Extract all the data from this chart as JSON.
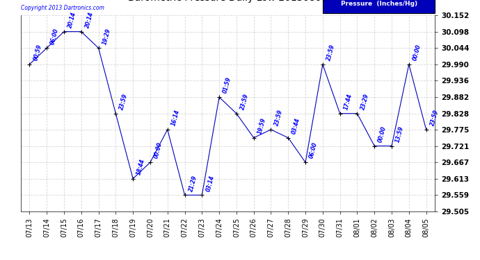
{
  "copyright_text": "Copyright 2013 Dartronics.com",
  "legend_label": "Pressure  (Inches/Hg)",
  "dates": [
    "07/13",
    "07/14",
    "07/15",
    "07/16",
    "07/17",
    "07/18",
    "07/19",
    "07/20",
    "07/21",
    "07/22",
    "07/23",
    "07/24",
    "07/25",
    "07/26",
    "07/27",
    "07/28",
    "07/29",
    "07/30",
    "07/31",
    "08/01",
    "08/02",
    "08/03",
    "08/04",
    "08/05"
  ],
  "pressures": [
    29.99,
    30.044,
    30.098,
    30.098,
    30.044,
    29.828,
    29.613,
    29.667,
    29.775,
    29.559,
    29.559,
    29.882,
    29.828,
    29.748,
    29.775,
    29.748,
    29.667,
    29.99,
    29.828,
    29.828,
    29.721,
    29.721,
    29.99,
    29.775
  ],
  "time_labels": [
    "00:59",
    "06:00",
    "20:14",
    "20:14",
    "19:29",
    "23:59",
    "18:44",
    "00:00",
    "16:14",
    "21:29",
    "03:14",
    "01:59",
    "23:59",
    "19:59",
    "23:59",
    "03:44",
    "06:00",
    "23:59",
    "17:44",
    "23:29",
    "00:00",
    "13:59",
    "00:00",
    "23:59"
  ],
  "ylim": [
    29.505,
    30.152
  ],
  "yticks": [
    29.505,
    29.559,
    29.613,
    29.667,
    29.721,
    29.775,
    29.828,
    29.882,
    29.936,
    29.99,
    30.044,
    30.098,
    30.152
  ],
  "line_color": "#0000bb",
  "marker_color": "#000000",
  "bg_color": "#ffffff",
  "grid_color": "#cccccc",
  "label_color": "#0000ff",
  "title_color": "#000000",
  "copyright_color": "#0000ff",
  "legend_bg": "#0000bb",
  "legend_text_color": "#ffffff"
}
